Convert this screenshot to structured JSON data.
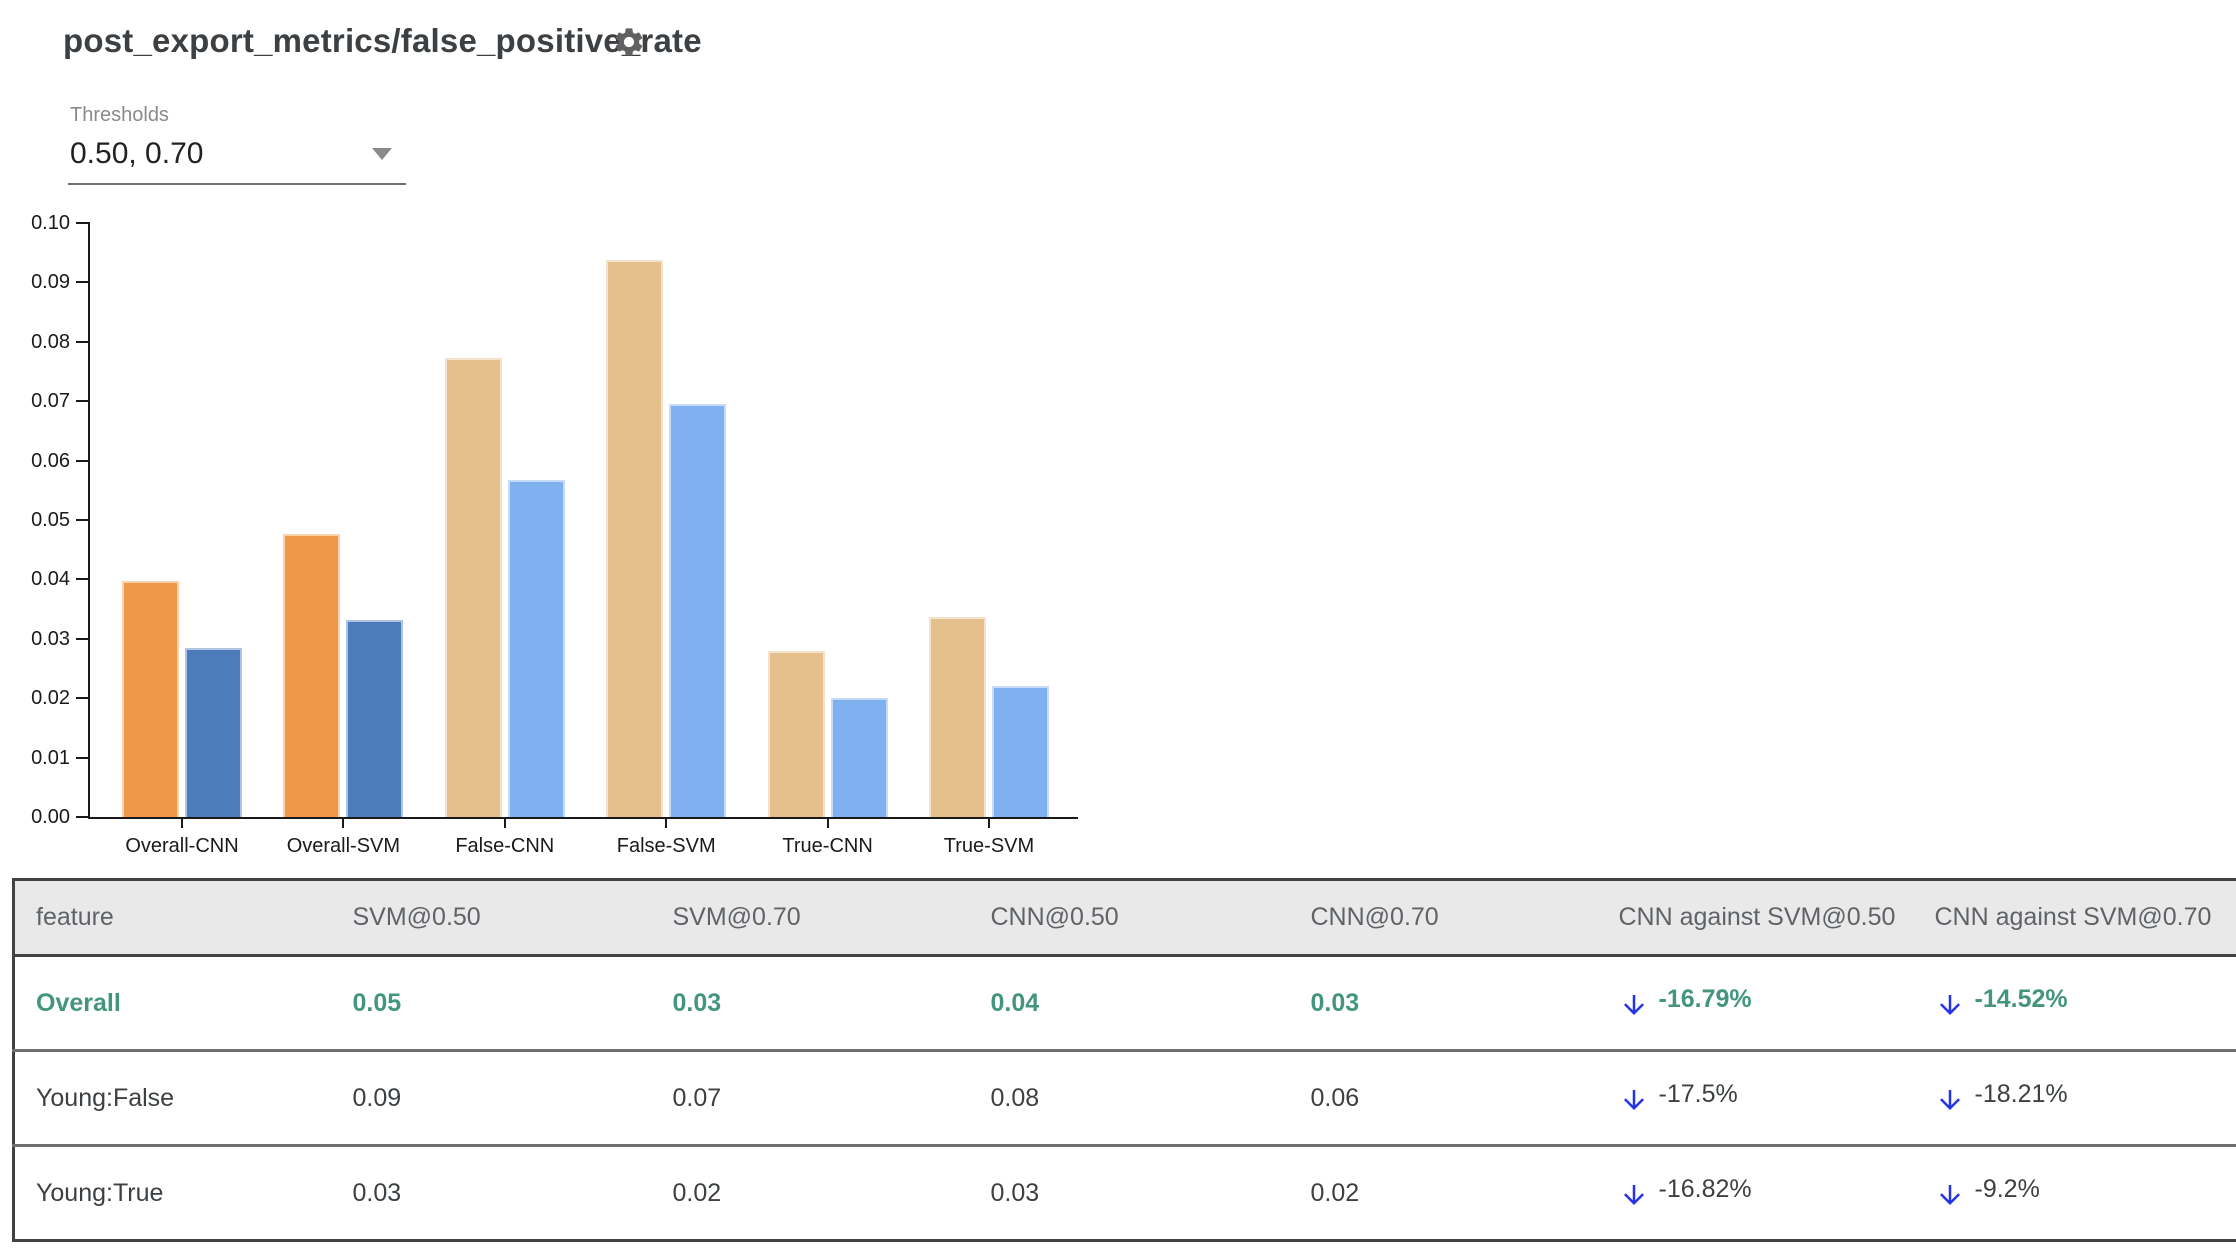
{
  "header": {
    "title": "post_export_metrics/false_positive_rate"
  },
  "thresholds": {
    "label": "Thresholds",
    "value": "0.50, 0.70"
  },
  "chart_data": {
    "type": "bar",
    "title": "",
    "xlabel": "",
    "ylabel": "",
    "categories": [
      "Overall-CNN",
      "Overall-SVM",
      "False-CNN",
      "False-SVM",
      "True-CNN",
      "True-SVM"
    ],
    "series": [
      {
        "name": "threshold 0.50",
        "values": [
          0.0398,
          0.0477,
          0.0773,
          0.0938,
          0.028,
          0.0337
        ],
        "colors": [
          "#ef9849",
          "#ef9849",
          "#e5c08d",
          "#e5c08d",
          "#e5c08d",
          "#e5c08d"
        ]
      },
      {
        "name": "threshold 0.70",
        "values": [
          0.0284,
          0.0332,
          0.0568,
          0.0695,
          0.0201,
          0.022
        ],
        "colors": [
          "#4d7cba",
          "#4d7cba",
          "#7fb0ef",
          "#7fb0ef",
          "#7fb0ef",
          "#7fb0ef"
        ]
      }
    ],
    "ylim": [
      0,
      0.1
    ],
    "y_tick_step": 0.01,
    "y_tick_labels": [
      "0.00",
      "0.01",
      "0.02",
      "0.03",
      "0.04",
      "0.05",
      "0.06",
      "0.07",
      "0.08",
      "0.09",
      "0.10"
    ],
    "grid": false,
    "legend": "none"
  },
  "table": {
    "columns": [
      "feature",
      "SVM@0.50",
      "SVM@0.70",
      "CNN@0.50",
      "CNN@0.70",
      "CNN against SVM@0.50",
      "CNN against SVM@0.70"
    ],
    "rows": [
      {
        "feature": "Overall",
        "values": [
          "0.05",
          "0.03",
          "0.04",
          "0.03"
        ],
        "comparisons": [
          "-16.79%",
          "-14.52%"
        ],
        "trend": "down",
        "highlight": true
      },
      {
        "feature": "Young:False",
        "values": [
          "0.09",
          "0.07",
          "0.08",
          "0.06"
        ],
        "comparisons": [
          "-17.5%",
          "-18.21%"
        ],
        "trend": "down",
        "highlight": false
      },
      {
        "feature": "Young:True",
        "values": [
          "0.03",
          "0.02",
          "0.03",
          "0.02"
        ],
        "comparisons": [
          "-16.82%",
          "-9.2%"
        ],
        "trend": "down",
        "highlight": false
      }
    ]
  },
  "colors": {
    "bar_orange": "#ef9849",
    "bar_dark_blue": "#4d7cba",
    "bar_tan": "#e5c08d",
    "bar_light_blue": "#7fb0ef",
    "positive_green": "#43967d",
    "arrow_blue": "#2433e8",
    "header_bg": "#e9e9e9",
    "axis_black": "#1a1a1a"
  }
}
